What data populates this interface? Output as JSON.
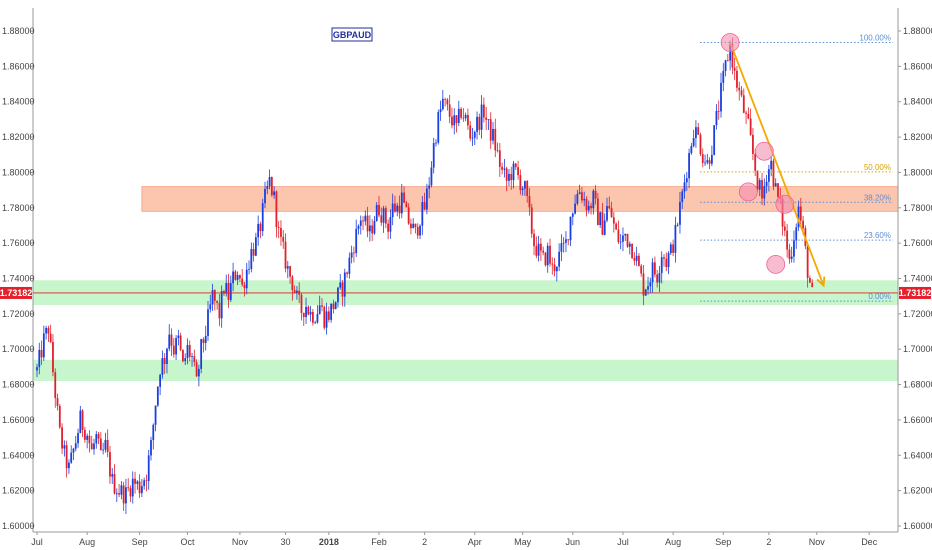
{
  "chart_data": {
    "type": "candlestick",
    "symbol": "GBPAUD",
    "current_price": 1.73182,
    "current_price_label": "1.73182",
    "ylim": [
      1.6,
      1.89
    ],
    "y_ticks": [
      "1.60000",
      "1.62000",
      "1.64000",
      "1.66000",
      "1.68000",
      "1.70000",
      "1.72000",
      "1.74000",
      "1.76000",
      "1.78000",
      "1.80000",
      "1.82000",
      "1.84000",
      "1.86000",
      "1.88000"
    ],
    "x_labels": [
      {
        "label": "Jul",
        "bar": 0
      },
      {
        "label": "Aug",
        "bar": 22
      },
      {
        "label": "Sep",
        "bar": 45
      },
      {
        "label": "Oct",
        "bar": 66
      },
      {
        "label": "Nov",
        "bar": 89
      },
      {
        "label": "30",
        "bar": 109
      },
      {
        "label": "2018",
        "bar": 128
      },
      {
        "label": "Feb",
        "bar": 150
      },
      {
        "label": "2",
        "bar": 170
      },
      {
        "label": "Apr",
        "bar": 192
      },
      {
        "label": "May",
        "bar": 213
      },
      {
        "label": "Jun",
        "bar": 235
      },
      {
        "label": "Jul",
        "bar": 257
      },
      {
        "label": "Aug",
        "bar": 279
      },
      {
        "label": "Sep",
        "bar": 301
      },
      {
        "label": "2",
        "bar": 321
      },
      {
        "label": "Nov",
        "bar": 342
      },
      {
        "label": "Dec",
        "bar": 365
      }
    ],
    "anchors": [
      [
        0,
        1.688
      ],
      [
        3,
        1.705
      ],
      [
        5,
        1.712
      ],
      [
        8,
        1.675
      ],
      [
        10,
        1.652
      ],
      [
        12,
        1.64
      ],
      [
        14,
        1.632
      ],
      [
        17,
        1.648
      ],
      [
        19,
        1.66
      ],
      [
        22,
        1.652
      ],
      [
        24,
        1.642
      ],
      [
        26,
        1.65
      ],
      [
        28,
        1.638
      ],
      [
        30,
        1.645
      ],
      [
        33,
        1.625
      ],
      [
        36,
        1.62
      ],
      [
        39,
        1.618
      ],
      [
        42,
        1.625
      ],
      [
        45,
        1.622
      ],
      [
        48,
        1.63
      ],
      [
        50,
        1.645
      ],
      [
        52,
        1.67
      ],
      [
        54,
        1.69
      ],
      [
        56,
        1.695
      ],
      [
        58,
        1.71
      ],
      [
        60,
        1.7
      ],
      [
        62,
        1.705
      ],
      [
        64,
        1.69
      ],
      [
        66,
        1.7
      ],
      [
        68,
        1.695
      ],
      [
        70,
        1.68
      ],
      [
        72,
        1.7
      ],
      [
        74,
        1.71
      ],
      [
        77,
        1.73
      ],
      [
        80,
        1.72
      ],
      [
        82,
        1.735
      ],
      [
        84,
        1.73
      ],
      [
        86,
        1.74
      ],
      [
        88,
        1.745
      ],
      [
        90,
        1.735
      ],
      [
        92,
        1.745
      ],
      [
        94,
        1.755
      ],
      [
        96,
        1.76
      ],
      [
        98,
        1.77
      ],
      [
        100,
        1.785
      ],
      [
        102,
        1.795
      ],
      [
        104,
        1.785
      ],
      [
        106,
        1.765
      ],
      [
        108,
        1.755
      ],
      [
        110,
        1.745
      ],
      [
        112,
        1.738
      ],
      [
        114,
        1.728
      ],
      [
        116,
        1.722
      ],
      [
        118,
        1.725
      ],
      [
        120,
        1.72
      ],
      [
        122,
        1.72
      ],
      [
        124,
        1.725
      ],
      [
        126,
        1.718
      ],
      [
        128,
        1.72
      ],
      [
        130,
        1.725
      ],
      [
        132,
        1.73
      ],
      [
        134,
        1.735
      ],
      [
        136,
        1.745
      ],
      [
        138,
        1.755
      ],
      [
        140,
        1.765
      ],
      [
        142,
        1.775
      ],
      [
        144,
        1.77
      ],
      [
        146,
        1.765
      ],
      [
        148,
        1.775
      ],
      [
        150,
        1.78
      ],
      [
        152,
        1.775
      ],
      [
        154,
        1.77
      ],
      [
        156,
        1.78
      ],
      [
        158,
        1.78
      ],
      [
        160,
        1.785
      ],
      [
        162,
        1.775
      ],
      [
        164,
        1.77
      ],
      [
        166,
        1.765
      ],
      [
        168,
        1.775
      ],
      [
        170,
        1.78
      ],
      [
        172,
        1.795
      ],
      [
        174,
        1.815
      ],
      [
        176,
        1.83
      ],
      [
        178,
        1.84
      ],
      [
        180,
        1.835
      ],
      [
        182,
        1.83
      ],
      [
        184,
        1.825
      ],
      [
        186,
        1.835
      ],
      [
        188,
        1.83
      ],
      [
        190,
        1.82
      ],
      [
        192,
        1.825
      ],
      [
        194,
        1.83
      ],
      [
        196,
        1.835
      ],
      [
        198,
        1.825
      ],
      [
        200,
        1.82
      ],
      [
        202,
        1.81
      ],
      [
        204,
        1.8
      ],
      [
        206,
        1.795
      ],
      [
        208,
        1.8
      ],
      [
        210,
        1.8
      ],
      [
        212,
        1.795
      ],
      [
        214,
        1.79
      ],
      [
        216,
        1.775
      ],
      [
        218,
        1.76
      ],
      [
        220,
        1.755
      ],
      [
        222,
        1.75
      ],
      [
        224,
        1.755
      ],
      [
        226,
        1.745
      ],
      [
        228,
        1.75
      ],
      [
        230,
        1.755
      ],
      [
        232,
        1.76
      ],
      [
        234,
        1.775
      ],
      [
        236,
        1.785
      ],
      [
        238,
        1.79
      ],
      [
        240,
        1.785
      ],
      [
        242,
        1.78
      ],
      [
        244,
        1.785
      ],
      [
        246,
        1.775
      ],
      [
        248,
        1.77
      ],
      [
        250,
        1.78
      ],
      [
        252,
        1.775
      ],
      [
        254,
        1.765
      ],
      [
        256,
        1.76
      ],
      [
        258,
        1.765
      ],
      [
        260,
        1.76
      ],
      [
        262,
        1.755
      ],
      [
        264,
        1.745
      ],
      [
        266,
        1.735
      ],
      [
        268,
        1.738
      ],
      [
        270,
        1.745
      ],
      [
        272,
        1.742
      ],
      [
        274,
        1.755
      ],
      [
        276,
        1.75
      ],
      [
        278,
        1.755
      ],
      [
        280,
        1.765
      ],
      [
        282,
        1.78
      ],
      [
        284,
        1.795
      ],
      [
        286,
        1.81
      ],
      [
        288,
        1.825
      ],
      [
        290,
        1.82
      ],
      [
        292,
        1.81
      ],
      [
        294,
        1.805
      ],
      [
        296,
        1.815
      ],
      [
        298,
        1.83
      ],
      [
        300,
        1.845
      ],
      [
        302,
        1.86
      ],
      [
        304,
        1.872
      ],
      [
        306,
        1.855
      ],
      [
        308,
        1.845
      ],
      [
        310,
        1.835
      ],
      [
        312,
        1.825
      ],
      [
        314,
        1.81
      ],
      [
        316,
        1.795
      ],
      [
        318,
        1.785
      ],
      [
        320,
        1.8
      ],
      [
        322,
        1.805
      ],
      [
        324,
        1.79
      ],
      [
        326,
        1.78
      ],
      [
        328,
        1.765
      ],
      [
        330,
        1.75
      ],
      [
        332,
        1.765
      ],
      [
        334,
        1.78
      ],
      [
        336,
        1.765
      ],
      [
        338,
        1.745
      ],
      [
        340,
        1.73
      ]
    ],
    "zones": [
      {
        "name": "resistance-zone",
        "bar_start": 46,
        "bar_end": 380,
        "low": 1.778,
        "high": 1.792,
        "color": "#f9b193"
      },
      {
        "name": "support-zone-upper",
        "bar_start": -2,
        "bar_end": 380,
        "low": 1.725,
        "high": 1.739,
        "color": "#a9f0b0"
      },
      {
        "name": "support-zone-lower",
        "bar_start": -2,
        "bar_end": 380,
        "low": 1.682,
        "high": 1.694,
        "color": "#a9f0b0"
      }
    ],
    "fib_levels": [
      {
        "label": "100.00%",
        "value": 1.8735,
        "color": "#5b8fd6"
      },
      {
        "label": "50.00%",
        "value": 1.8003,
        "color": "#d9a400"
      },
      {
        "label": "38.20%",
        "value": 1.7831,
        "color": "#5b8fd6"
      },
      {
        "label": "23.60%",
        "value": 1.7617,
        "color": "#5b8fd6"
      },
      {
        "label": "0.00%",
        "value": 1.7272,
        "color": "#5b8fd6"
      }
    ],
    "circles": [
      {
        "bar": 304,
        "value": 1.8735
      },
      {
        "bar": 319,
        "value": 1.812
      },
      {
        "bar": 312,
        "value": 1.789
      },
      {
        "bar": 328,
        "value": 1.782
      },
      {
        "bar": 324,
        "value": 1.748
      }
    ],
    "trend_line": {
      "from": [
        304,
        1.8735
      ],
      "to": [
        345,
        1.736
      ],
      "color": "#f5a800"
    },
    "colors": {
      "bull": "#1a3fe0",
      "bear": "#e0202a",
      "price_line": "#e0202a",
      "price_badge": "#e6202a",
      "fib_value_color": "#d9a400"
    }
  }
}
